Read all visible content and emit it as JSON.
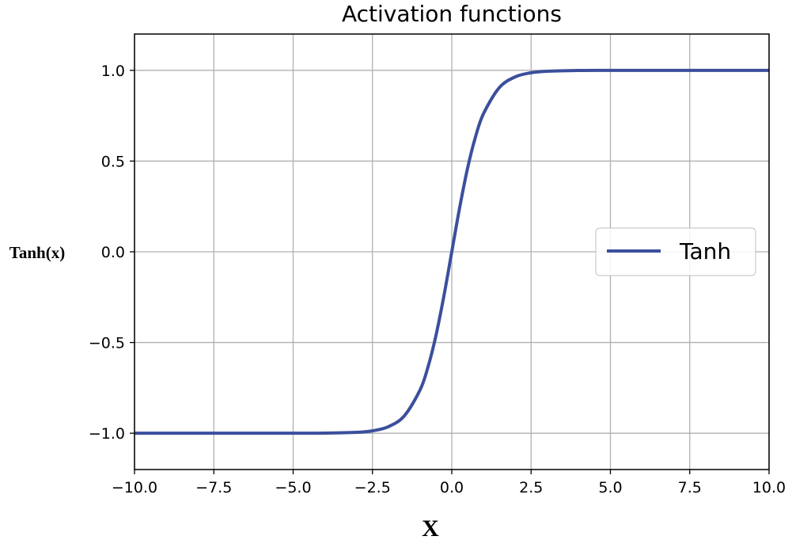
{
  "chart_data": {
    "type": "line",
    "title": "Activation functions",
    "xlabel": "X",
    "ylabel": "Tanh(x)",
    "xlim": [
      -10,
      10
    ],
    "ylim": [
      -1.2,
      1.2
    ],
    "x_ticks": [
      -10,
      -7.5,
      -5,
      -2.5,
      0,
      2.5,
      5,
      7.5,
      10
    ],
    "x_tick_labels": [
      "−10.0",
      "−7.5",
      "−5.0",
      "−2.5",
      "0.0",
      "2.5",
      "5.0",
      "7.5",
      "10.0"
    ],
    "y_ticks": [
      -1,
      -0.5,
      0,
      0.5,
      1
    ],
    "y_tick_labels": [
      "−1.0",
      "−0.5",
      "0.0",
      "0.5",
      "1.0"
    ],
    "grid": true,
    "legend_position": "center-right",
    "series": [
      {
        "name": "Tanh",
        "color": "#3b4f9c",
        "x": [
          -10,
          -7.5,
          -5,
          -4,
          -3,
          -2.5,
          -2,
          -1.5,
          -1,
          -0.75,
          -0.5,
          -0.25,
          0,
          0.25,
          0.5,
          0.75,
          1,
          1.5,
          2,
          2.5,
          3,
          4,
          5,
          7.5,
          10
        ],
        "y": [
          -1.0,
          -1.0,
          -0.9999,
          -0.9993,
          -0.9951,
          -0.9866,
          -0.964,
          -0.9051,
          -0.7616,
          -0.6351,
          -0.4621,
          -0.2449,
          0.0,
          0.2449,
          0.4621,
          0.6351,
          0.7616,
          0.9051,
          0.964,
          0.9866,
          0.9951,
          0.9993,
          0.9999,
          1.0,
          1.0
        ]
      }
    ]
  }
}
